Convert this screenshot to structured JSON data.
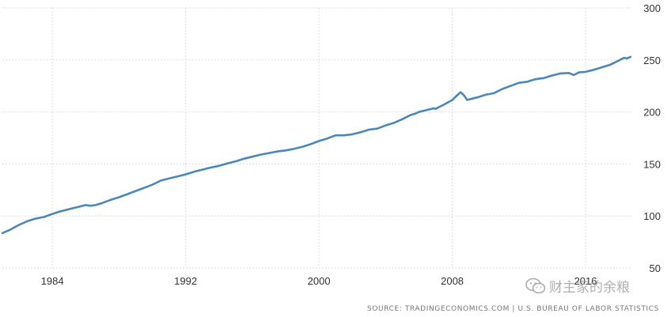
{
  "chart_data": {
    "type": "line",
    "title": "",
    "xlabel": "",
    "ylabel": "",
    "xlim": [
      1981.0,
      2018.8
    ],
    "ylim": [
      50,
      300
    ],
    "y_ticks": [
      50,
      100,
      150,
      200,
      250,
      300
    ],
    "x_ticks": [
      1984,
      1992,
      2000,
      2008,
      2016
    ],
    "grid": true,
    "legend": "none",
    "line_color": "#4d86b8",
    "series": [
      {
        "x": [
          1981.0,
          1981.5,
          1982.0,
          1982.5,
          1983.0,
          1983.5,
          1984.0,
          1984.5,
          1985.0,
          1985.5,
          1986.0,
          1986.3,
          1986.6,
          1987.0,
          1987.5,
          1988.0,
          1988.5,
          1989.0,
          1989.5,
          1990.0,
          1990.5,
          1991.0,
          1991.5,
          1992.0,
          1992.5,
          1993.0,
          1993.5,
          1994.0,
          1994.5,
          1995.0,
          1995.5,
          1996.0,
          1996.5,
          1997.0,
          1997.5,
          1998.0,
          1998.5,
          1999.0,
          1999.5,
          2000.0,
          2000.5,
          2001.0,
          2001.5,
          2002.0,
          2002.5,
          2003.0,
          2003.5,
          2004.0,
          2004.5,
          2005.0,
          2005.5,
          2005.8,
          2006.0,
          2006.5,
          2006.9,
          2007.0,
          2007.5,
          2008.0,
          2008.3,
          2008.5,
          2008.7,
          2008.9,
          2009.0,
          2009.5,
          2010.0,
          2010.5,
          2011.0,
          2011.5,
          2012.0,
          2012.5,
          2013.0,
          2013.5,
          2014.0,
          2014.5,
          2015.0,
          2015.3,
          2015.6,
          2016.0,
          2016.5,
          2017.0,
          2017.5,
          2018.0,
          2018.3,
          2018.5,
          2018.7
        ],
        "y": [
          83.5,
          87,
          91.5,
          95,
          97.5,
          99,
          102,
          104.5,
          106.5,
          108.5,
          110.5,
          109.8,
          110.5,
          112.5,
          115.5,
          118,
          121,
          124,
          127,
          130,
          134,
          136,
          138,
          140,
          142.5,
          144.5,
          146.5,
          148.2,
          150.5,
          152.5,
          155,
          157,
          159,
          160.5,
          162,
          163,
          164.5,
          166.5,
          169,
          172,
          174.5,
          177.5,
          177.5,
          178.5,
          180.5,
          183,
          184,
          187,
          189.5,
          193,
          197,
          198.5,
          200,
          202,
          203.5,
          203,
          207,
          211.5,
          216,
          219,
          216,
          211.5,
          212,
          214,
          216.5,
          218,
          222,
          225,
          228,
          229,
          231.5,
          232.5,
          235,
          237,
          237.5,
          235.5,
          238,
          238.5,
          240.5,
          243,
          245.5,
          249.5,
          252,
          251.5,
          253
        ]
      }
    ]
  },
  "source_text": "SOURCE: TRADINGECONOMICS.COM  |  U.S. BUREAU OF LABOR STATISTICS",
  "watermark": {
    "text": "财主家的余粮",
    "icon": "wechat-icon"
  }
}
